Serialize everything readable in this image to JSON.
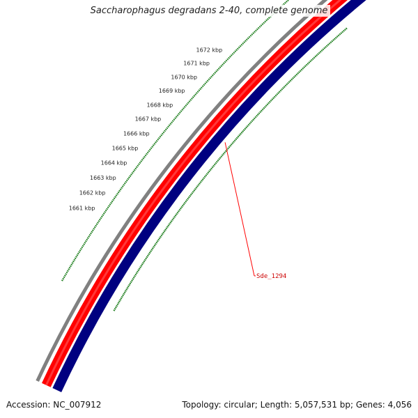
{
  "title": "Saccharophagus degradans 2-40, complete genome",
  "footer": {
    "accession": "Accession: NC_007912",
    "summary": "Topology: circular; Length: 5,057,531 bp; Genes: 4,056"
  },
  "ticks": [
    {
      "label": "1661 kbp"
    },
    {
      "label": "1662 kbp"
    },
    {
      "label": "1663 kbp"
    },
    {
      "label": "1664 kbp"
    },
    {
      "label": "1665 kbp"
    },
    {
      "label": "1666 kbp"
    },
    {
      "label": "1667 kbp"
    },
    {
      "label": "1668 kbp"
    },
    {
      "label": "1669 kbp"
    },
    {
      "label": "1670 kbp"
    },
    {
      "label": "1671 kbp"
    },
    {
      "label": "1672 kbp"
    }
  ],
  "feature": {
    "label": "Sde_1294"
  },
  "colors": {
    "background_ring": "#808080",
    "forward_strand": "#ff0000",
    "reverse_strand": "#000080",
    "ticks": "#1f7f1f",
    "callout": "#ff0000"
  }
}
